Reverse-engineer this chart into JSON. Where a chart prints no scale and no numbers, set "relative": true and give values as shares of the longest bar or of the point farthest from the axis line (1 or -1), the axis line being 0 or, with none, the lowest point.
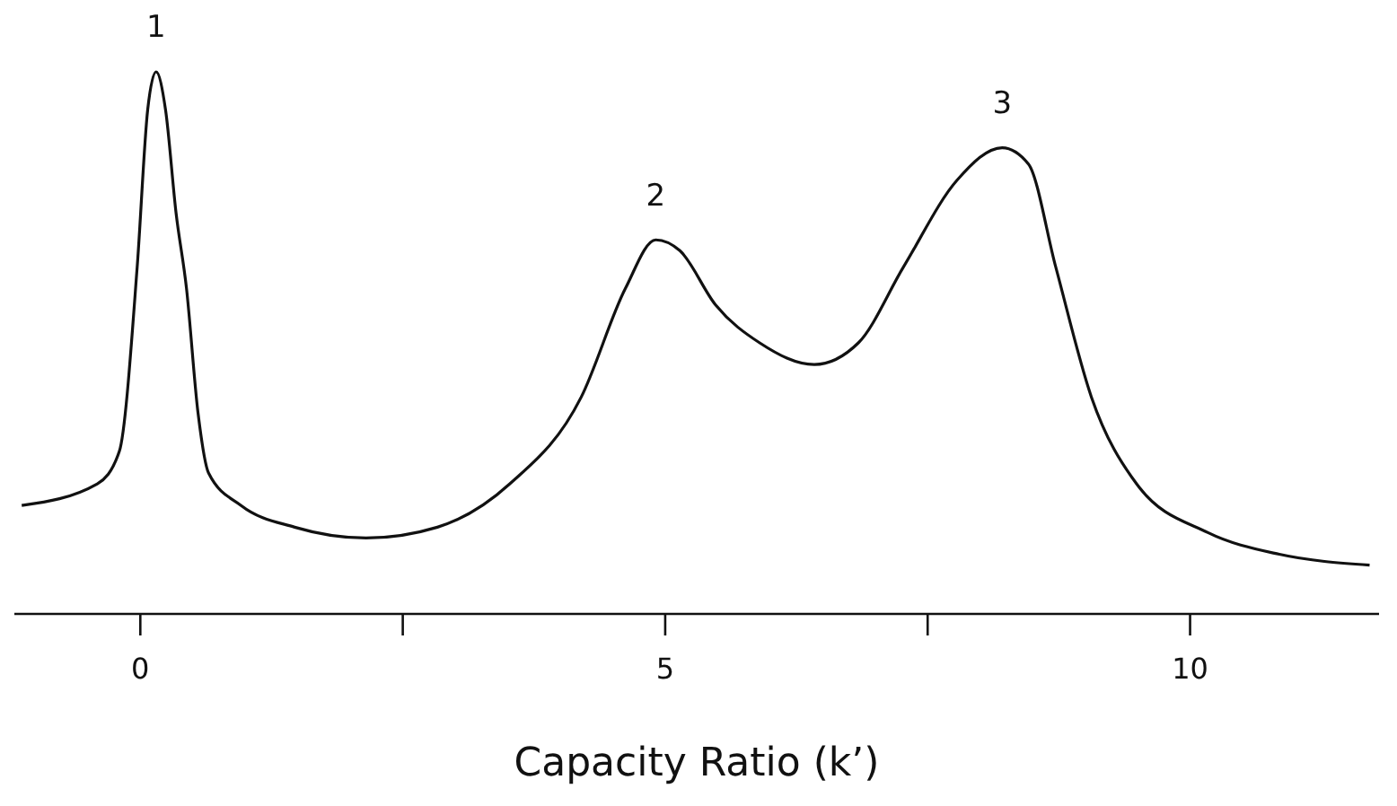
{
  "chart_data": {
    "type": "line",
    "relative": true,
    "xlabel": "Capacity Ratio (k’)",
    "xlim": [
      -1.2,
      11.8
    ],
    "xticks": [
      0,
      {
        "value": 2.5,
        "label": null
      },
      5,
      {
        "value": 7.5,
        "label": null
      },
      10
    ],
    "tick_labels": "x",
    "grid": false,
    "marker": "none",
    "line_style": "solid",
    "series": [
      {
        "color": "#111111",
        "x": [
          -1.13,
          -0.41,
          -0.2,
          -0.03,
          0.07,
          0.15,
          0.24,
          0.34,
          0.44,
          0.55,
          0.65,
          0.96,
          1.47,
          2.15,
          2.83,
          3.52,
          4.2,
          4.62,
          4.91,
          5.14,
          5.48,
          5.9,
          6.42,
          6.84,
          7.27,
          7.78,
          8.21,
          8.46,
          8.72,
          9.06,
          9.49,
          10.17,
          10.85,
          11.71
        ],
        "values": [
          0.2,
          0.24,
          0.3,
          0.64,
          0.93,
          1,
          0.93,
          0.74,
          0.6,
          0.37,
          0.26,
          0.2,
          0.16,
          0.14,
          0.16,
          0.24,
          0.4,
          0.6,
          0.69,
          0.67,
          0.57,
          0.5,
          0.46,
          0.5,
          0.64,
          0.8,
          0.86,
          0.83,
          0.64,
          0.4,
          0.24,
          0.15,
          0.11,
          0.09
        ]
      }
    ],
    "annotations": [
      {
        "text": "1",
        "x": 0.15,
        "y": 1
      },
      {
        "text": "2",
        "x": 4.91,
        "y": 0.69
      },
      {
        "text": "3",
        "x": 8.21,
        "y": 0.86
      }
    ]
  }
}
